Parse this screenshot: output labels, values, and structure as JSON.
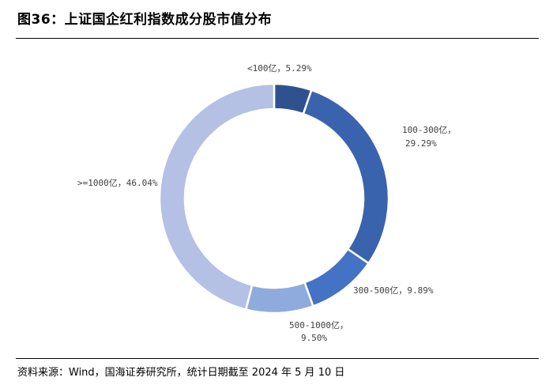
{
  "title": "图36：上证国企红利指数成分股市值分布",
  "source": "资料来源：Wind，国海证券研究所，统计日期截至 2024 年 5 月 10 日",
  "chart_data": {
    "type": "pie",
    "donut": true,
    "slices": [
      {
        "label": "<100亿",
        "value": 5.29,
        "display": "5.29%",
        "color": "#2f528f"
      },
      {
        "label": "100-300亿",
        "value": 29.29,
        "display": "29.29%",
        "color": "#3a63ad"
      },
      {
        "label": "300-500亿",
        "value": 9.89,
        "display": "9.89%",
        "color": "#4472c4"
      },
      {
        "label": "500-1000亿",
        "value": 9.5,
        "display": "9.50%",
        "color": "#8faadc"
      },
      {
        "label": ">=1000亿",
        "value": 46.04,
        "display": "46.04%",
        "color": "#b4c0e4"
      }
    ]
  }
}
